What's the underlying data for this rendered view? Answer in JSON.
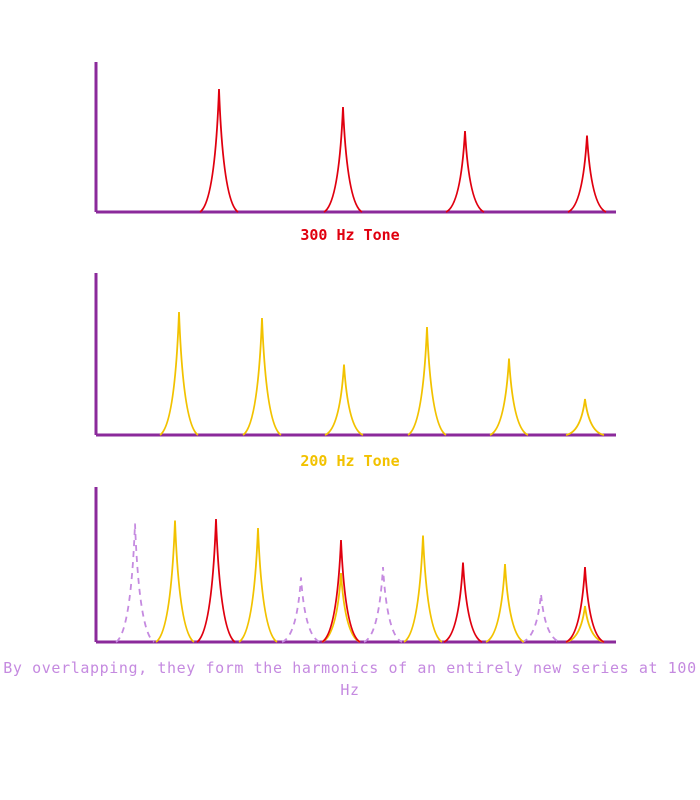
{
  "panel_300": {
    "caption": "300 Hz Tone",
    "color": "#e0000f",
    "peak_heights": [
      0.82,
      0.7,
      0.54,
      0.51
    ]
  },
  "panel_200": {
    "caption": "200 Hz Tone",
    "color": "#f2c200",
    "peak_heights": [
      0.82,
      0.78,
      0.47,
      0.72,
      0.51,
      0.24
    ]
  },
  "panel_combined": {
    "caption": "By overlapping, they form the harmonics of an entirely new series at 100 Hz",
    "caption_color": "#c58ae0",
    "peaks_200_heights": [
      0.81,
      0.76,
      0.46,
      0.71,
      0.52,
      0.24
    ],
    "peaks_300_heights": [
      0.82,
      0.68,
      0.53,
      0.5
    ],
    "peaks_100_dashed_heights": [
      0.79,
      0.43,
      0.5,
      0.32
    ]
  },
  "axis_color": "#8b2a9b"
}
